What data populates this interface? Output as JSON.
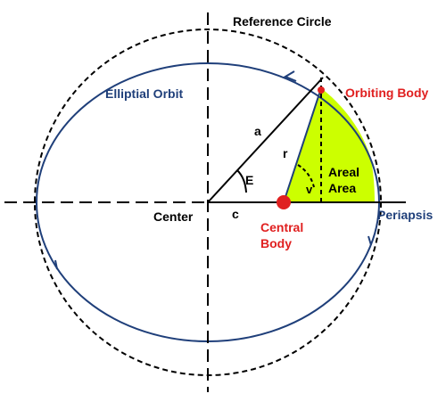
{
  "labels": {
    "reference_circle": "Reference Circle",
    "elliptical_orbit": "Elliptial Orbit",
    "orbiting_body": "Orbiting Body",
    "a": "a",
    "r": "r",
    "E": "E",
    "v": "v",
    "areal_line1": "Areal",
    "areal_line2": "Area",
    "center": "Center",
    "c": "c",
    "central_body_line1": "Central",
    "central_body_line2": "Body",
    "periapsis": "Periapsis"
  },
  "colors": {
    "orbit": "#1f3f7a",
    "label_blue": "#1f3f7a",
    "label_red": "#e02020",
    "areal_fill": "#ccff00",
    "text_black": "#000000"
  }
}
